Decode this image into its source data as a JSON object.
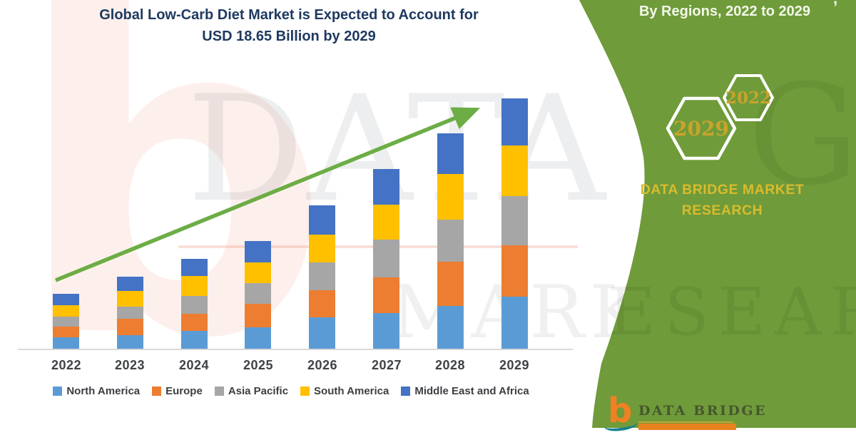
{
  "header": {
    "title_line1": "Global Low-Carb Diet Market is Expected to Account for",
    "title_line2": "USD 18.65 Billion by 2029"
  },
  "side_panel": {
    "clipped_fragment": ",",
    "heading": "By Regions, 2022 to 2029",
    "hexagon_back_label": "2029",
    "hexagon_front_label": "2022",
    "brand_line1": "DATA BRIDGE MARKET",
    "brand_line2": "RESEARCH"
  },
  "footer_logo": {
    "monogram": "b",
    "brand": "DATA BRIDGE"
  },
  "watermarks": {
    "big_letter": "b",
    "row1": "DATA BRI",
    "row2": "MARKET RE",
    "panel_row1": "GE",
    "panel_row2": "ESEARCH"
  },
  "chart_data": {
    "type": "bar",
    "stacked": true,
    "title": "Global Low-Carb Diet Market is Expected to Account for USD 18.65 Billion by 2029",
    "unit": "USD Billion",
    "categories": [
      "2022",
      "2023",
      "2024",
      "2025",
      "2026",
      "2027",
      "2028",
      "2029"
    ],
    "series": [
      {
        "name": "North America",
        "color": "#5B9BD5",
        "values": [
          0.85,
          1.01,
          1.33,
          1.59,
          2.34,
          2.66,
          3.19,
          3.88
        ]
      },
      {
        "name": "Europe",
        "color": "#ED7D31",
        "values": [
          0.8,
          1.22,
          1.27,
          1.75,
          2.02,
          2.66,
          3.29,
          3.83
        ]
      },
      {
        "name": "Asia Pacific",
        "color": "#A6A6A6",
        "values": [
          0.74,
          0.9,
          1.33,
          1.54,
          2.07,
          2.82,
          3.13,
          3.67
        ]
      },
      {
        "name": "South America",
        "color": "#FFC000",
        "values": [
          0.85,
          1.17,
          1.49,
          1.54,
          2.07,
          2.6,
          3.4,
          3.77
        ]
      },
      {
        "name": "Middle East and Africa",
        "color": "#4472C4",
        "values": [
          0.85,
          1.06,
          1.27,
          1.59,
          2.18,
          2.66,
          3.03,
          3.5
        ]
      }
    ],
    "totals": [
      4.09,
      5.36,
      6.69,
      8.01,
      10.68,
      13.4,
      16.04,
      18.65
    ],
    "ylim": [
      0,
      20
    ],
    "grid": false,
    "legend_position": "bottom",
    "annotations": [
      "green upward trend arrow from 2022 bar to 2029 bar"
    ]
  },
  "colors": {
    "panel_green": "#6F9B3A",
    "arrow_green": "#6CAD45",
    "title_navy": "#1F3A60",
    "brand_gold": "#D9BB2C",
    "hexagon_gold": "#C8A42C",
    "axis_text": "#3F4245",
    "logo_orange": "#F08122",
    "logo_teal": "#15808F",
    "logo_text_green": "#46572E"
  }
}
